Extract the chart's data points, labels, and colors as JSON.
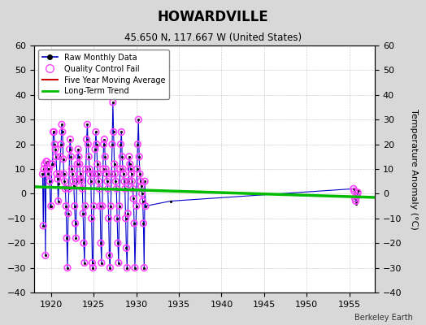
{
  "title": "HOWARDVILLE",
  "subtitle": "45.650 N, 117.667 W (United States)",
  "right_ylabel": "Temperature Anomaly (°C)",
  "credit": "Berkeley Earth",
  "xlim": [
    1918,
    1958
  ],
  "ylim": [
    -40,
    60
  ],
  "yticks": [
    -40,
    -30,
    -20,
    -10,
    0,
    10,
    20,
    30,
    40,
    50,
    60
  ],
  "xticks": [
    1920,
    1925,
    1930,
    1935,
    1940,
    1945,
    1950,
    1955
  ],
  "bg_color": "#d8d8d8",
  "plot_bg_color": "#ffffff",
  "raw_data": [
    [
      1919.0,
      8.0
    ],
    [
      1919.083,
      -13.0
    ],
    [
      1919.167,
      10.0
    ],
    [
      1919.25,
      12.0
    ],
    [
      1919.333,
      -25.0
    ],
    [
      1919.417,
      13.0
    ],
    [
      1919.5,
      13.0
    ],
    [
      1919.583,
      10.0
    ],
    [
      1919.667,
      8.0
    ],
    [
      1919.75,
      10.0
    ],
    [
      1919.833,
      5.0
    ],
    [
      1919.917,
      -5.0
    ],
    [
      1920.0,
      -5.0
    ],
    [
      1920.083,
      12.0
    ],
    [
      1920.167,
      12.0
    ],
    [
      1920.25,
      25.0
    ],
    [
      1920.333,
      25.0
    ],
    [
      1920.417,
      20.0
    ],
    [
      1920.5,
      18.0
    ],
    [
      1920.583,
      15.0
    ],
    [
      1920.667,
      8.0
    ],
    [
      1920.75,
      6.0
    ],
    [
      1920.833,
      -3.0
    ],
    [
      1920.917,
      4.0
    ],
    [
      1921.0,
      8.0
    ],
    [
      1921.083,
      15.0
    ],
    [
      1921.167,
      20.0
    ],
    [
      1921.25,
      28.0
    ],
    [
      1921.333,
      25.0
    ],
    [
      1921.417,
      14.0
    ],
    [
      1921.5,
      8.0
    ],
    [
      1921.583,
      5.0
    ],
    [
      1921.667,
      2.0
    ],
    [
      1921.75,
      -5.0
    ],
    [
      1921.833,
      -18.0
    ],
    [
      1921.917,
      -30.0
    ],
    [
      1922.0,
      -8.0
    ],
    [
      1922.083,
      2.0
    ],
    [
      1922.167,
      18.0
    ],
    [
      1922.25,
      22.0
    ],
    [
      1922.333,
      15.0
    ],
    [
      1922.417,
      10.0
    ],
    [
      1922.5,
      8.0
    ],
    [
      1922.583,
      5.0
    ],
    [
      1922.667,
      3.0
    ],
    [
      1922.75,
      -5.0
    ],
    [
      1922.833,
      -12.0
    ],
    [
      1922.917,
      -18.0
    ],
    [
      1923.0,
      5.0
    ],
    [
      1923.083,
      12.0
    ],
    [
      1923.167,
      18.0
    ],
    [
      1923.25,
      15.0
    ],
    [
      1923.333,
      12.0
    ],
    [
      1923.417,
      8.0
    ],
    [
      1923.5,
      6.0
    ],
    [
      1923.583,
      5.0
    ],
    [
      1923.667,
      2.0
    ],
    [
      1923.75,
      -8.0
    ],
    [
      1923.833,
      -20.0
    ],
    [
      1923.917,
      -28.0
    ],
    [
      1924.0,
      -5.0
    ],
    [
      1924.083,
      10.0
    ],
    [
      1924.167,
      22.0
    ],
    [
      1924.25,
      28.0
    ],
    [
      1924.333,
      20.0
    ],
    [
      1924.417,
      15.0
    ],
    [
      1924.5,
      10.0
    ],
    [
      1924.583,
      8.0
    ],
    [
      1924.667,
      5.0
    ],
    [
      1924.75,
      -10.0
    ],
    [
      1924.833,
      -28.0
    ],
    [
      1924.917,
      -30.0
    ],
    [
      1925.0,
      -5.0
    ],
    [
      1925.083,
      8.0
    ],
    [
      1925.167,
      18.0
    ],
    [
      1925.25,
      25.0
    ],
    [
      1925.333,
      20.0
    ],
    [
      1925.417,
      12.0
    ],
    [
      1925.5,
      8.0
    ],
    [
      1925.583,
      5.0
    ],
    [
      1925.667,
      2.0
    ],
    [
      1925.75,
      -5.0
    ],
    [
      1925.833,
      -20.0
    ],
    [
      1925.917,
      -28.0
    ],
    [
      1926.0,
      -5.0
    ],
    [
      1926.083,
      10.0
    ],
    [
      1926.167,
      20.0
    ],
    [
      1926.25,
      22.0
    ],
    [
      1926.333,
      15.0
    ],
    [
      1926.417,
      10.0
    ],
    [
      1926.5,
      8.0
    ],
    [
      1926.583,
      5.0
    ],
    [
      1926.667,
      2.0
    ],
    [
      1926.75,
      -10.0
    ],
    [
      1926.833,
      -25.0
    ],
    [
      1926.917,
      -30.0
    ],
    [
      1927.0,
      -5.0
    ],
    [
      1927.083,
      8.0
    ],
    [
      1927.167,
      20.0
    ],
    [
      1927.25,
      37.0
    ],
    [
      1927.333,
      25.0
    ],
    [
      1927.417,
      12.0
    ],
    [
      1927.5,
      8.0
    ],
    [
      1927.583,
      5.0
    ],
    [
      1927.667,
      2.0
    ],
    [
      1927.75,
      -10.0
    ],
    [
      1927.833,
      -20.0
    ],
    [
      1927.917,
      -28.0
    ],
    [
      1928.0,
      -5.0
    ],
    [
      1928.083,
      10.0
    ],
    [
      1928.167,
      20.0
    ],
    [
      1928.25,
      25.0
    ],
    [
      1928.333,
      15.0
    ],
    [
      1928.417,
      10.0
    ],
    [
      1928.5,
      8.0
    ],
    [
      1928.583,
      5.0
    ],
    [
      1928.667,
      2.0
    ],
    [
      1928.75,
      -10.0
    ],
    [
      1928.833,
      -22.0
    ],
    [
      1928.917,
      -30.0
    ],
    [
      1929.0,
      -8.0
    ],
    [
      1929.083,
      5.0
    ],
    [
      1929.167,
      15.0
    ],
    [
      1929.25,
      12.0
    ],
    [
      1929.333,
      10.0
    ],
    [
      1929.417,
      8.0
    ],
    [
      1929.5,
      5.0
    ],
    [
      1929.583,
      2.0
    ],
    [
      1929.667,
      -2.0
    ],
    [
      1929.75,
      -12.0
    ],
    [
      1929.833,
      -30.0
    ],
    [
      1930.0,
      -5.0
    ],
    [
      1930.083,
      10.0
    ],
    [
      1930.167,
      20.0
    ],
    [
      1930.25,
      30.0
    ],
    [
      1930.333,
      15.0
    ],
    [
      1930.417,
      8.0
    ],
    [
      1930.5,
      5.0
    ],
    [
      1930.583,
      3.0
    ],
    [
      1930.667,
      0.0
    ],
    [
      1930.75,
      -3.0
    ],
    [
      1930.833,
      -12.0
    ],
    [
      1930.917,
      -30.0
    ],
    [
      1931.0,
      5.0
    ],
    [
      1931.083,
      -5.0
    ],
    [
      1934.0,
      -3.0
    ],
    [
      1955.5,
      2.0
    ],
    [
      1955.583,
      1.0
    ],
    [
      1955.667,
      -2.0
    ],
    [
      1955.75,
      -3.0
    ],
    [
      1955.833,
      -4.0
    ],
    [
      1955.917,
      -1.0
    ],
    [
      1956.0,
      0.5
    ],
    [
      1956.083,
      1.5
    ],
    [
      1956.167,
      -1.0
    ]
  ],
  "qc_fail_data": [
    [
      1919.0,
      8.0
    ],
    [
      1919.083,
      -13.0
    ],
    [
      1919.167,
      10.0
    ],
    [
      1919.25,
      12.0
    ],
    [
      1919.333,
      -25.0
    ],
    [
      1919.417,
      13.0
    ],
    [
      1919.5,
      13.0
    ],
    [
      1919.583,
      10.0
    ],
    [
      1919.667,
      8.0
    ],
    [
      1919.75,
      10.0
    ],
    [
      1919.833,
      5.0
    ],
    [
      1920.0,
      -5.0
    ],
    [
      1920.083,
      12.0
    ],
    [
      1920.167,
      12.0
    ],
    [
      1920.25,
      25.0
    ],
    [
      1920.333,
      25.0
    ],
    [
      1920.417,
      20.0
    ],
    [
      1920.5,
      18.0
    ],
    [
      1920.583,
      15.0
    ],
    [
      1920.667,
      8.0
    ],
    [
      1920.75,
      6.0
    ],
    [
      1920.833,
      -3.0
    ],
    [
      1921.0,
      8.0
    ],
    [
      1921.083,
      15.0
    ],
    [
      1921.167,
      20.0
    ],
    [
      1921.25,
      28.0
    ],
    [
      1921.333,
      25.0
    ],
    [
      1921.417,
      14.0
    ],
    [
      1921.5,
      8.0
    ],
    [
      1921.583,
      5.0
    ],
    [
      1921.667,
      2.0
    ],
    [
      1921.75,
      -5.0
    ],
    [
      1921.833,
      -18.0
    ],
    [
      1921.917,
      -30.0
    ],
    [
      1922.0,
      -8.0
    ],
    [
      1922.083,
      2.0
    ],
    [
      1922.167,
      18.0
    ],
    [
      1922.25,
      22.0
    ],
    [
      1922.333,
      15.0
    ],
    [
      1922.417,
      10.0
    ],
    [
      1922.5,
      8.0
    ],
    [
      1922.583,
      5.0
    ],
    [
      1922.667,
      3.0
    ],
    [
      1922.75,
      -5.0
    ],
    [
      1922.833,
      -12.0
    ],
    [
      1922.917,
      -18.0
    ],
    [
      1923.0,
      5.0
    ],
    [
      1923.083,
      12.0
    ],
    [
      1923.167,
      18.0
    ],
    [
      1923.25,
      15.0
    ],
    [
      1923.333,
      12.0
    ],
    [
      1923.417,
      8.0
    ],
    [
      1923.5,
      6.0
    ],
    [
      1923.583,
      5.0
    ],
    [
      1923.667,
      2.0
    ],
    [
      1923.75,
      -8.0
    ],
    [
      1923.833,
      -20.0
    ],
    [
      1923.917,
      -28.0
    ],
    [
      1924.0,
      -5.0
    ],
    [
      1924.083,
      10.0
    ],
    [
      1924.167,
      22.0
    ],
    [
      1924.25,
      28.0
    ],
    [
      1924.333,
      20.0
    ],
    [
      1924.417,
      15.0
    ],
    [
      1924.5,
      10.0
    ],
    [
      1924.583,
      8.0
    ],
    [
      1924.667,
      5.0
    ],
    [
      1924.75,
      -10.0
    ],
    [
      1924.833,
      -28.0
    ],
    [
      1924.917,
      -30.0
    ],
    [
      1925.0,
      -5.0
    ],
    [
      1925.083,
      8.0
    ],
    [
      1925.167,
      18.0
    ],
    [
      1925.25,
      25.0
    ],
    [
      1925.333,
      20.0
    ],
    [
      1925.417,
      12.0
    ],
    [
      1925.5,
      8.0
    ],
    [
      1925.583,
      5.0
    ],
    [
      1925.667,
      2.0
    ],
    [
      1925.75,
      -5.0
    ],
    [
      1925.833,
      -20.0
    ],
    [
      1925.917,
      -28.0
    ],
    [
      1926.0,
      -5.0
    ],
    [
      1926.083,
      10.0
    ],
    [
      1926.167,
      20.0
    ],
    [
      1926.25,
      22.0
    ],
    [
      1926.333,
      15.0
    ],
    [
      1926.417,
      10.0
    ],
    [
      1926.5,
      8.0
    ],
    [
      1926.583,
      5.0
    ],
    [
      1926.667,
      2.0
    ],
    [
      1926.75,
      -10.0
    ],
    [
      1926.833,
      -25.0
    ],
    [
      1926.917,
      -30.0
    ],
    [
      1927.0,
      -5.0
    ],
    [
      1927.083,
      8.0
    ],
    [
      1927.167,
      20.0
    ],
    [
      1927.25,
      37.0
    ],
    [
      1927.333,
      25.0
    ],
    [
      1927.417,
      12.0
    ],
    [
      1927.5,
      8.0
    ],
    [
      1927.583,
      5.0
    ],
    [
      1927.667,
      2.0
    ],
    [
      1927.75,
      -10.0
    ],
    [
      1927.833,
      -20.0
    ],
    [
      1927.917,
      -28.0
    ],
    [
      1928.0,
      -5.0
    ],
    [
      1928.083,
      10.0
    ],
    [
      1928.167,
      20.0
    ],
    [
      1928.25,
      25.0
    ],
    [
      1928.333,
      15.0
    ],
    [
      1928.417,
      10.0
    ],
    [
      1928.5,
      8.0
    ],
    [
      1928.583,
      5.0
    ],
    [
      1928.667,
      2.0
    ],
    [
      1928.75,
      -10.0
    ],
    [
      1928.833,
      -22.0
    ],
    [
      1928.917,
      -30.0
    ],
    [
      1929.0,
      -8.0
    ],
    [
      1929.083,
      5.0
    ],
    [
      1929.167,
      15.0
    ],
    [
      1929.25,
      12.0
    ],
    [
      1929.333,
      10.0
    ],
    [
      1929.417,
      8.0
    ],
    [
      1929.5,
      5.0
    ],
    [
      1929.583,
      2.0
    ],
    [
      1929.667,
      -2.0
    ],
    [
      1929.75,
      -12.0
    ],
    [
      1929.833,
      -30.0
    ],
    [
      1930.0,
      -5.0
    ],
    [
      1930.083,
      10.0
    ],
    [
      1930.167,
      20.0
    ],
    [
      1930.25,
      30.0
    ],
    [
      1930.333,
      15.0
    ],
    [
      1930.417,
      8.0
    ],
    [
      1930.5,
      5.0
    ],
    [
      1930.583,
      3.0
    ],
    [
      1930.667,
      0.0
    ],
    [
      1930.75,
      -3.0
    ],
    [
      1930.833,
      -12.0
    ],
    [
      1930.917,
      -30.0
    ],
    [
      1931.0,
      5.0
    ],
    [
      1931.083,
      -5.0
    ],
    [
      1955.5,
      2.0
    ],
    [
      1955.583,
      1.0
    ],
    [
      1955.667,
      -2.0
    ],
    [
      1955.75,
      -3.0
    ],
    [
      1955.917,
      -1.0
    ],
    [
      1956.0,
      0.5
    ]
  ],
  "trend_x": [
    1918,
    1958
  ],
  "trend_y": [
    2.8,
    -1.5
  ],
  "raw_line_color": "#0000cc",
  "raw_dot_color": "#000000",
  "qc_circle_color": "#ff44ff",
  "moving_avg_color": "#cc0000",
  "trend_color": "#00bb00",
  "grid_color": "#aaaaaa",
  "legend_labels": [
    "Raw Monthly Data",
    "Quality Control Fail",
    "Five Year Moving Average",
    "Long-Term Trend"
  ]
}
